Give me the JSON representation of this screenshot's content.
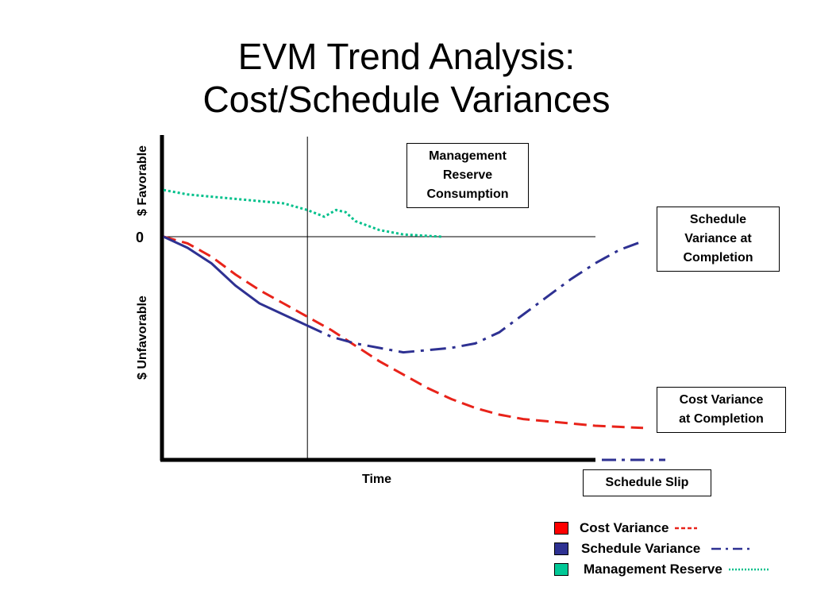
{
  "title": {
    "line1": "EVM Trend Analysis:",
    "line2": "Cost/Schedule Variances"
  },
  "axes": {
    "y_favorable": "$ Favorable",
    "y_unfavorable": "$ Unfavorable",
    "y_zero": "0",
    "x_label": "Time"
  },
  "annotations": {
    "management_reserve": "Management\nReserve\nConsumption",
    "schedule_variance_completion": "Schedule\nVariance at\nCompletion",
    "cost_variance_completion": "Cost Variance\nat Completion",
    "schedule_slip": "Schedule Slip"
  },
  "legend": {
    "cost_variance": "Cost Variance",
    "schedule_variance": "Schedule Variance",
    "management_reserve": "Management Reserve"
  },
  "colors": {
    "cost_variance": "#e8231a",
    "schedule_variance": "#2e3192",
    "management_reserve": "#00c08b",
    "cost_swatch": "#ff0000",
    "schedule_swatch": "#2e3192",
    "reserve_swatch": "#00c896"
  },
  "chart_data": {
    "type": "line",
    "title": "EVM Trend Analysis: Cost/Schedule Variances",
    "xlabel": "Time",
    "ylabel": "$ Favorable / $ Unfavorable",
    "xlim": [
      0,
      1
    ],
    "ylim": [
      -1,
      0.5
    ],
    "status_date_x": 0.3,
    "series": [
      {
        "name": "Cost Variance",
        "style": "dashed",
        "points": [
          [
            0,
            0
          ],
          [
            0.05,
            -0.03
          ],
          [
            0.1,
            -0.09
          ],
          [
            0.15,
            -0.17
          ],
          [
            0.2,
            -0.24
          ],
          [
            0.25,
            -0.3
          ],
          [
            0.3,
            -0.36
          ],
          [
            0.35,
            -0.42
          ],
          [
            0.4,
            -0.49
          ],
          [
            0.45,
            -0.56
          ],
          [
            0.5,
            -0.62
          ],
          [
            0.55,
            -0.68
          ],
          [
            0.6,
            -0.73
          ],
          [
            0.65,
            -0.77
          ],
          [
            0.7,
            -0.8
          ],
          [
            0.75,
            -0.82
          ],
          [
            0.8,
            -0.83
          ],
          [
            0.85,
            -0.84
          ],
          [
            0.9,
            -0.85
          ],
          [
            0.95,
            -0.855
          ],
          [
            1.0,
            -0.86
          ]
        ]
      },
      {
        "name": "Schedule Variance",
        "style": "solid-then-dashdot",
        "forecast_from_x": 0.3,
        "points": [
          [
            0,
            0
          ],
          [
            0.05,
            -0.05
          ],
          [
            0.1,
            -0.12
          ],
          [
            0.15,
            -0.22
          ],
          [
            0.2,
            -0.3
          ],
          [
            0.25,
            -0.35
          ],
          [
            0.3,
            -0.4
          ],
          [
            0.35,
            -0.45
          ],
          [
            0.4,
            -0.48
          ],
          [
            0.45,
            -0.5
          ],
          [
            0.5,
            -0.52
          ],
          [
            0.55,
            -0.51
          ],
          [
            0.6,
            -0.5
          ],
          [
            0.65,
            -0.48
          ],
          [
            0.7,
            -0.43
          ],
          [
            0.75,
            -0.35
          ],
          [
            0.8,
            -0.27
          ],
          [
            0.85,
            -0.19
          ],
          [
            0.9,
            -0.12
          ],
          [
            0.95,
            -0.06
          ],
          [
            1.0,
            -0.02
          ]
        ]
      },
      {
        "name": "Management Reserve",
        "style": "dotted",
        "points": [
          [
            0,
            0.21
          ],
          [
            0.05,
            0.19
          ],
          [
            0.1,
            0.18
          ],
          [
            0.15,
            0.17
          ],
          [
            0.2,
            0.16
          ],
          [
            0.25,
            0.15
          ],
          [
            0.3,
            0.12
          ],
          [
            0.335,
            0.09
          ],
          [
            0.36,
            0.12
          ],
          [
            0.38,
            0.11
          ],
          [
            0.4,
            0.07
          ],
          [
            0.45,
            0.03
          ],
          [
            0.5,
            0.01
          ],
          [
            0.58,
            0.0
          ]
        ]
      },
      {
        "name": "Schedule Slip",
        "style": "dashdot",
        "x_range": [
          1.0,
          1.15
        ],
        "y": -1
      }
    ]
  }
}
